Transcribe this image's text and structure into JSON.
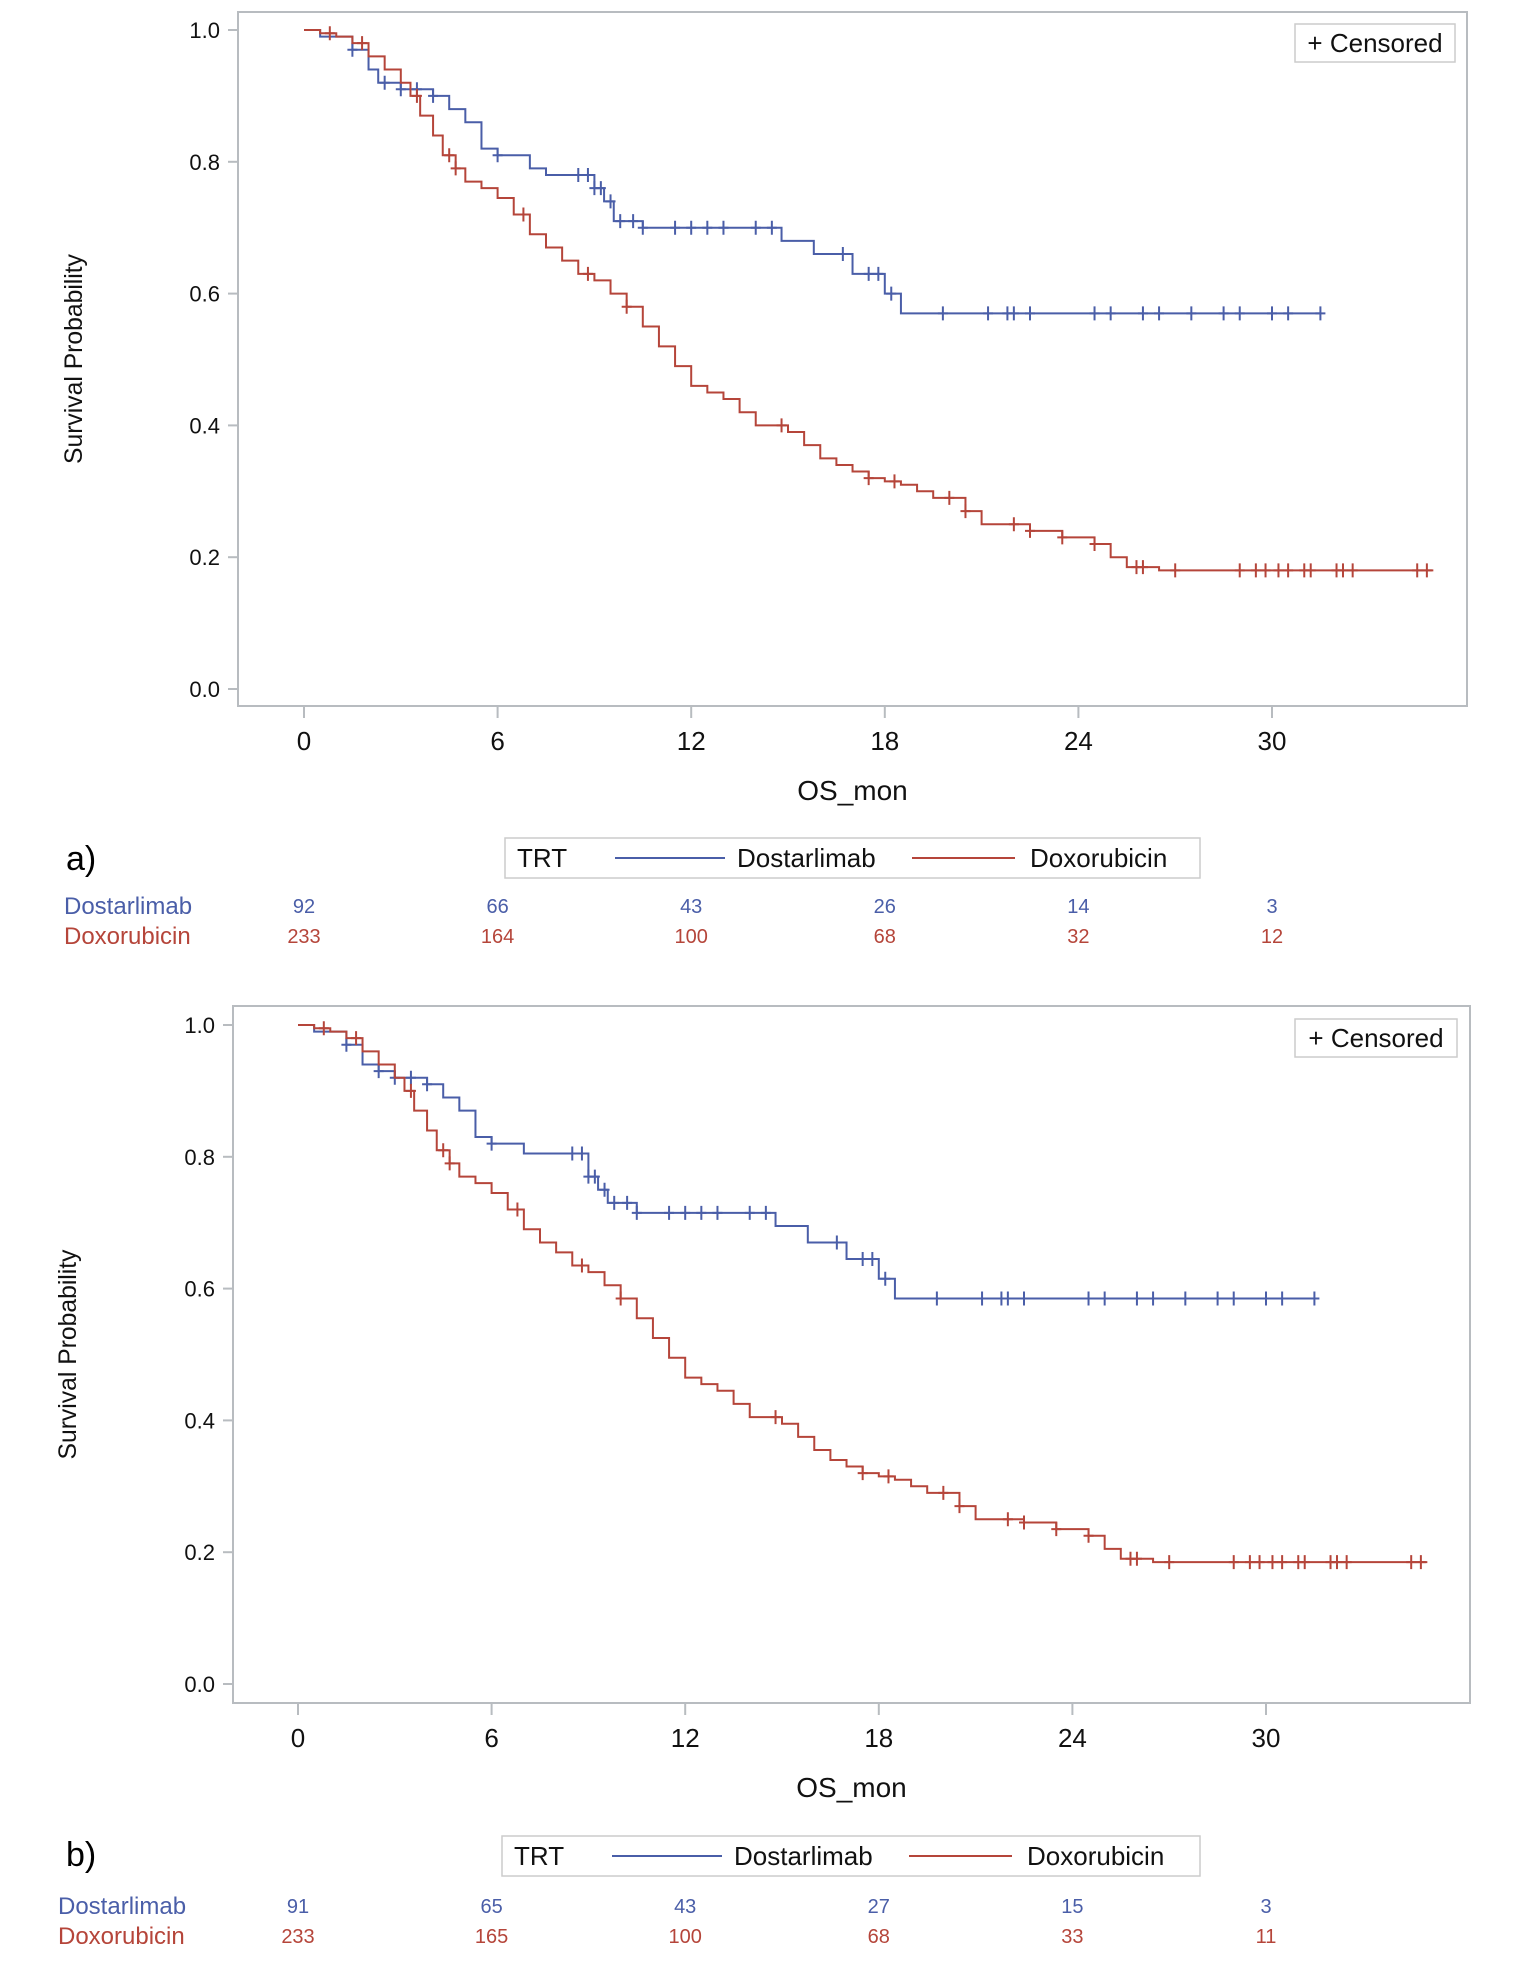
{
  "colors": {
    "Dostarlimab": "#4a5ea8",
    "Doxorubicin": "#b5453a",
    "frame": "#b8bcc0"
  },
  "chart_data": [
    {
      "panel_label": "a)",
      "type": "line",
      "subtype": "kaplan-meier step",
      "xlabel": "OS_mon",
      "ylabel": "Survival Probability",
      "xlim": [
        -2,
        36
      ],
      "ylim": [
        0,
        1
      ],
      "xticks": [
        "0",
        "6",
        "12",
        "18",
        "24",
        "30"
      ],
      "yticks": [
        "0.0",
        "0.2",
        "0.4",
        "0.6",
        "0.8",
        "1.0"
      ],
      "grid": false,
      "censor_legend": "+ Censored",
      "legend": {
        "title": "TRT",
        "entries": [
          "Dostarlimab",
          "Doxorubicin"
        ],
        "placement": "bottom"
      },
      "series": [
        {
          "name": "Dostarlimab",
          "end": 31.5,
          "steps": [
            [
              0.5,
              0.99
            ],
            [
              1.5,
              0.97
            ],
            [
              2,
              0.94
            ],
            [
              2.3,
              0.92
            ],
            [
              3,
              0.91
            ],
            [
              4,
              0.9
            ],
            [
              4.5,
              0.88
            ],
            [
              5,
              0.86
            ],
            [
              5.5,
              0.82
            ],
            [
              6,
              0.81
            ],
            [
              7,
              0.79
            ],
            [
              7.5,
              0.78
            ],
            [
              9,
              0.76
            ],
            [
              9.3,
              0.74
            ],
            [
              9.6,
              0.71
            ],
            [
              10.5,
              0.7
            ],
            [
              14.8,
              0.68
            ],
            [
              15.8,
              0.66
            ],
            [
              17,
              0.63
            ],
            [
              18,
              0.6
            ],
            [
              18.5,
              0.57
            ]
          ],
          "censored": [
            1.5,
            2.5,
            3,
            3.5,
            4,
            6,
            8.5,
            8.8,
            9,
            9.2,
            9.5,
            9.8,
            10.2,
            10.5,
            11.5,
            12,
            12.5,
            13,
            14,
            14.5,
            16.7,
            17.5,
            17.8,
            18.2,
            19.8,
            21.2,
            21.8,
            22,
            22.5,
            24.5,
            25,
            26,
            26.5,
            27.5,
            28.5,
            29,
            30,
            30.5,
            31.5
          ]
        },
        {
          "name": "Doxorubicin",
          "end": 35,
          "steps": [
            [
              0.5,
              0.995
            ],
            [
              1,
              0.99
            ],
            [
              1.5,
              0.98
            ],
            [
              2,
              0.96
            ],
            [
              2.5,
              0.94
            ],
            [
              3,
              0.92
            ],
            [
              3.3,
              0.9
            ],
            [
              3.6,
              0.87
            ],
            [
              4,
              0.84
            ],
            [
              4.3,
              0.81
            ],
            [
              4.7,
              0.79
            ],
            [
              5,
              0.77
            ],
            [
              5.5,
              0.76
            ],
            [
              6,
              0.745
            ],
            [
              6.5,
              0.72
            ],
            [
              7,
              0.69
            ],
            [
              7.5,
              0.67
            ],
            [
              8,
              0.65
            ],
            [
              8.5,
              0.63
            ],
            [
              9,
              0.62
            ],
            [
              9.5,
              0.6
            ],
            [
              10,
              0.58
            ],
            [
              10.5,
              0.55
            ],
            [
              11,
              0.52
            ],
            [
              11.5,
              0.49
            ],
            [
              12,
              0.46
            ],
            [
              12.5,
              0.45
            ],
            [
              13,
              0.44
            ],
            [
              13.5,
              0.42
            ],
            [
              14,
              0.4
            ],
            [
              15,
              0.39
            ],
            [
              15.5,
              0.37
            ],
            [
              16,
              0.35
            ],
            [
              16.5,
              0.34
            ],
            [
              17,
              0.33
            ],
            [
              17.5,
              0.32
            ],
            [
              18,
              0.315
            ],
            [
              18.5,
              0.31
            ],
            [
              19,
              0.3
            ],
            [
              19.5,
              0.29
            ],
            [
              20.5,
              0.27
            ],
            [
              21,
              0.25
            ],
            [
              22.5,
              0.24
            ],
            [
              23.5,
              0.23
            ],
            [
              24.5,
              0.22
            ],
            [
              25,
              0.2
            ],
            [
              25.5,
              0.185
            ],
            [
              26.5,
              0.18
            ]
          ],
          "censored": [
            0.8,
            1.8,
            3.5,
            4.5,
            4.7,
            6.8,
            8.8,
            10,
            14.8,
            17.5,
            18.3,
            20,
            20.5,
            22,
            22.5,
            23.5,
            24.5,
            25.8,
            26,
            27,
            29,
            29.5,
            29.8,
            30.2,
            30.5,
            31,
            31.2,
            32,
            32.2,
            32.5,
            34.5,
            34.8
          ]
        }
      ],
      "risk_table": {
        "times": [
          0,
          6,
          12,
          18,
          24,
          30
        ],
        "rows": [
          {
            "name": "Dostarlimab",
            "values": [
              "92",
              "66",
              "43",
              "26",
              "14",
              "3"
            ]
          },
          {
            "name": "Doxorubicin",
            "values": [
              "233",
              "164",
              "100",
              "68",
              "32",
              "12"
            ]
          }
        ]
      }
    },
    {
      "panel_label": "b)",
      "type": "line",
      "subtype": "kaplan-meier step",
      "xlabel": "OS_mon",
      "ylabel": "Survival Probability",
      "xlim": [
        -2,
        36
      ],
      "ylim": [
        0,
        1
      ],
      "xticks": [
        "0",
        "6",
        "12",
        "18",
        "24",
        "30"
      ],
      "yticks": [
        "0.0",
        "0.2",
        "0.4",
        "0.6",
        "0.8",
        "1.0"
      ],
      "grid": false,
      "censor_legend": "+ Censored",
      "legend": {
        "title": "TRT",
        "entries": [
          "Dostarlimab",
          "Doxorubicin"
        ],
        "placement": "bottom"
      },
      "series": [
        {
          "name": "Dostarlimab",
          "end": 31.5,
          "steps": [
            [
              0.5,
              0.99
            ],
            [
              1.5,
              0.97
            ],
            [
              2,
              0.94
            ],
            [
              2.5,
              0.93
            ],
            [
              3,
              0.92
            ],
            [
              4,
              0.91
            ],
            [
              4.5,
              0.89
            ],
            [
              5,
              0.87
            ],
            [
              5.5,
              0.83
            ],
            [
              6,
              0.82
            ],
            [
              7,
              0.805
            ],
            [
              9,
              0.77
            ],
            [
              9.3,
              0.75
            ],
            [
              9.6,
              0.73
            ],
            [
              10.5,
              0.715
            ],
            [
              14.8,
              0.695
            ],
            [
              15.8,
              0.67
            ],
            [
              17,
              0.645
            ],
            [
              18,
              0.615
            ],
            [
              18.5,
              0.585
            ]
          ],
          "censored": [
            1.5,
            2.5,
            3,
            3.5,
            4,
            6,
            8.5,
            8.8,
            9,
            9.2,
            9.5,
            9.8,
            10.2,
            10.5,
            11.5,
            12,
            12.5,
            13,
            14,
            14.5,
            16.7,
            17.5,
            17.8,
            18.2,
            19.8,
            21.2,
            21.8,
            22,
            22.5,
            24.5,
            25,
            26,
            26.5,
            27.5,
            28.5,
            29,
            30,
            30.5,
            31.5
          ]
        },
        {
          "name": "Doxorubicin",
          "end": 35,
          "steps": [
            [
              0.5,
              0.995
            ],
            [
              1,
              0.99
            ],
            [
              1.5,
              0.98
            ],
            [
              2,
              0.96
            ],
            [
              2.5,
              0.94
            ],
            [
              3,
              0.92
            ],
            [
              3.3,
              0.9
            ],
            [
              3.6,
              0.87
            ],
            [
              4,
              0.84
            ],
            [
              4.3,
              0.81
            ],
            [
              4.7,
              0.79
            ],
            [
              5,
              0.77
            ],
            [
              5.5,
              0.76
            ],
            [
              6,
              0.745
            ],
            [
              6.5,
              0.72
            ],
            [
              7,
              0.69
            ],
            [
              7.5,
              0.67
            ],
            [
              8,
              0.655
            ],
            [
              8.5,
              0.635
            ],
            [
              9,
              0.625
            ],
            [
              9.5,
              0.605
            ],
            [
              10,
              0.585
            ],
            [
              10.5,
              0.555
            ],
            [
              11,
              0.525
            ],
            [
              11.5,
              0.495
            ],
            [
              12,
              0.465
            ],
            [
              12.5,
              0.455
            ],
            [
              13,
              0.445
            ],
            [
              13.5,
              0.425
            ],
            [
              14,
              0.405
            ],
            [
              15,
              0.395
            ],
            [
              15.5,
              0.375
            ],
            [
              16,
              0.355
            ],
            [
              16.5,
              0.34
            ],
            [
              17,
              0.33
            ],
            [
              17.5,
              0.32
            ],
            [
              18,
              0.315
            ],
            [
              18.5,
              0.31
            ],
            [
              19,
              0.3
            ],
            [
              19.5,
              0.29
            ],
            [
              20.5,
              0.27
            ],
            [
              21,
              0.25
            ],
            [
              22.5,
              0.245
            ],
            [
              23.5,
              0.235
            ],
            [
              24.5,
              0.225
            ],
            [
              25,
              0.205
            ],
            [
              25.5,
              0.19
            ],
            [
              26.5,
              0.185
            ]
          ],
          "censored": [
            0.8,
            1.8,
            3.5,
            4.5,
            4.7,
            6.8,
            8.8,
            10,
            14.8,
            17.5,
            18.3,
            20,
            20.5,
            22,
            22.5,
            23.5,
            24.5,
            25.8,
            26,
            27,
            29,
            29.5,
            29.8,
            30.2,
            30.5,
            31,
            31.2,
            32,
            32.2,
            32.5,
            34.5,
            34.8
          ]
        }
      ],
      "risk_table": {
        "times": [
          0,
          6,
          12,
          18,
          24,
          30
        ],
        "rows": [
          {
            "name": "Dostarlimab",
            "values": [
              "91",
              "65",
              "43",
              "27",
              "15",
              "3"
            ]
          },
          {
            "name": "Doxorubicin",
            "values": [
              "233",
              "165",
              "100",
              "68",
              "33",
              "11"
            ]
          }
        ]
      }
    }
  ]
}
